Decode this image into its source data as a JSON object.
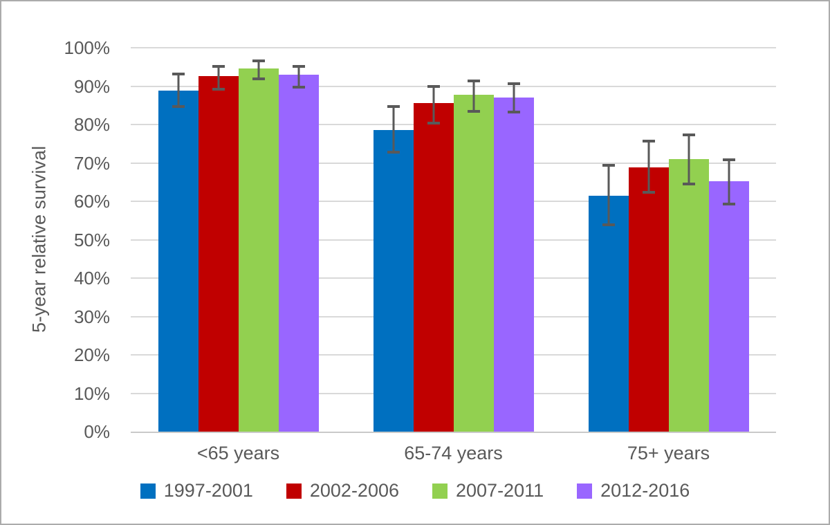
{
  "chart_data": {
    "type": "bar",
    "title": "",
    "xlabel": "",
    "ylabel": "5-year relative survival",
    "categories": [
      "<65 years",
      "65-74 years",
      "75+ years"
    ],
    "series": [
      {
        "name": "1997-2001",
        "color": "#0070C0",
        "values": [
          88.8,
          78.5,
          61.5
        ],
        "error_low": [
          84.3,
          72.5,
          53.5
        ],
        "error_high": [
          93.5,
          85.0,
          69.8
        ]
      },
      {
        "name": "2002-2006",
        "color": "#C00000",
        "values": [
          92.6,
          85.5,
          68.9
        ],
        "error_low": [
          88.9,
          80.0,
          61.9
        ],
        "error_high": [
          95.5,
          90.3,
          76.1
        ]
      },
      {
        "name": "2007-2011",
        "color": "#92D050",
        "values": [
          94.6,
          87.8,
          71.0
        ],
        "error_low": [
          91.5,
          83.1,
          64.2
        ],
        "error_high": [
          97.0,
          91.7,
          77.6
        ]
      },
      {
        "name": "2012-2016",
        "color": "#9966FF",
        "values": [
          92.9,
          87.1,
          65.2
        ],
        "error_low": [
          89.3,
          82.8,
          59.0
        ],
        "error_high": [
          95.5,
          91.0,
          71.2
        ]
      }
    ],
    "ylim": [
      0,
      100
    ],
    "ytick_step": 10,
    "ytick_format": "percent",
    "grid": "horizontal",
    "legend_position": "bottom",
    "error_bars": true
  },
  "styles": {
    "gridline_color": "#D9D9D9",
    "axis_line_color": "#C9C9C9",
    "text_color": "#595959",
    "error_bar_color": "#595959",
    "border_color": "#ABABAB",
    "background": "#FFFFFF"
  }
}
